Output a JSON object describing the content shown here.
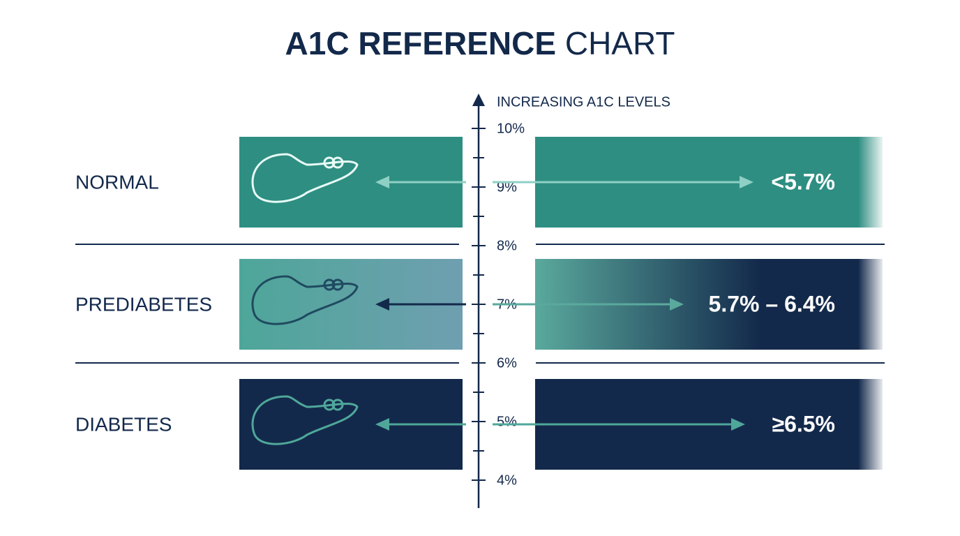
{
  "title": {
    "bold": "A1C REFERENCE",
    "light": "CHART"
  },
  "axis": {
    "label": "INCREASING A1C LEVELS",
    "ticks": [
      "10%",
      "9%",
      "8%",
      "7%",
      "6%",
      "5%",
      "4%"
    ]
  },
  "rows": [
    {
      "label": "NORMAL",
      "range": "<5.7%"
    },
    {
      "label": "PREDIABETES",
      "range": "5.7% – 6.4%"
    },
    {
      "label": "DIABETES",
      "range": "≥6.5%"
    }
  ]
}
